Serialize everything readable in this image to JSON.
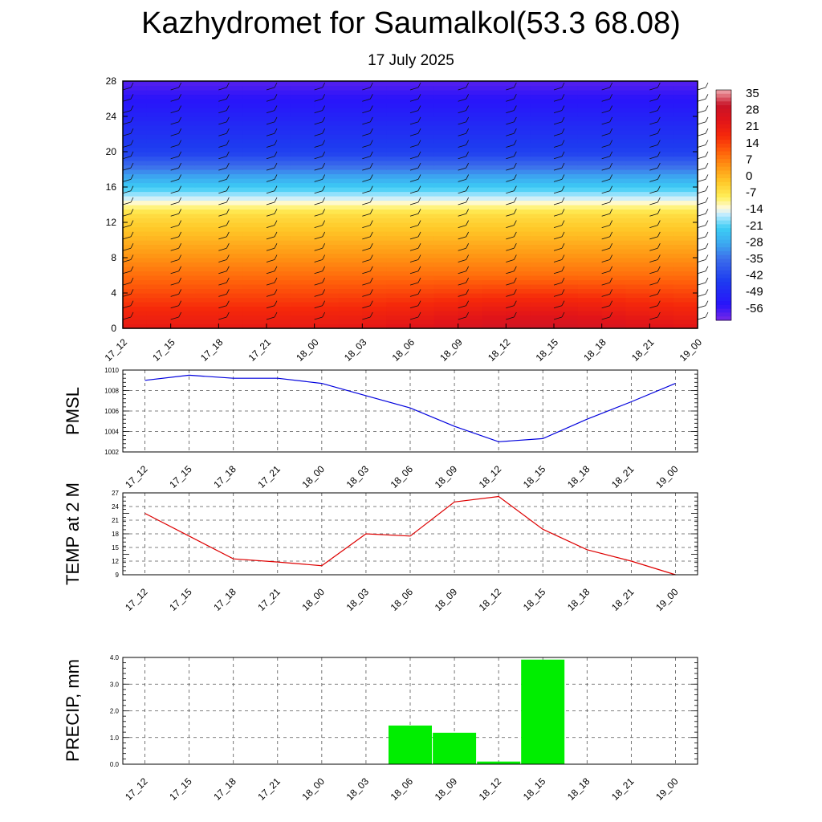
{
  "header": {
    "title": "Kazhydromet for Saumalkol(53.3 68.08)",
    "subtitle": "17 July 2025"
  },
  "chart_data": [
    {
      "type": "heatmap",
      "title": "",
      "xlabel": "",
      "ylabel": "",
      "x_labels": [
        "17_12",
        "17_15",
        "17_18",
        "17_21",
        "18_00",
        "18_03",
        "18_06",
        "18_09",
        "18_12",
        "18_15",
        "18_18",
        "18_21",
        "19_00"
      ],
      "y_ticks": [
        0,
        4,
        8,
        12,
        16,
        20,
        24,
        28
      ],
      "ylim": [
        0,
        28
      ],
      "colorbar_ticks": [
        35,
        28,
        21,
        14,
        7,
        0,
        -7,
        -14,
        -21,
        -28,
        -35,
        -42,
        -49,
        -56
      ],
      "colorbar_range": [
        -63,
        42
      ],
      "features": "temperature shading with wind barbs",
      "grid": false
    },
    {
      "type": "line",
      "title": "",
      "ylabel": "PMSL",
      "x": [
        "17_12",
        "17_15",
        "17_18",
        "17_21",
        "18_00",
        "18_03",
        "18_06",
        "18_09",
        "18_12",
        "18_15",
        "18_18",
        "18_21",
        "19_00"
      ],
      "series": [
        {
          "values": [
            1009.0,
            1009.5,
            1009.2,
            1009.2,
            1008.7,
            1007.5,
            1006.3,
            1004.5,
            1003.0,
            1003.3,
            1005.2,
            1006.9,
            1008.7
          ],
          "color": "#0000dd"
        }
      ],
      "y_ticks": [
        "1002",
        "1004",
        "1006",
        "1008",
        "1010"
      ],
      "ylim": [
        1002,
        1010
      ],
      "grid": true
    },
    {
      "type": "line",
      "title": "",
      "ylabel": "TEMP at 2 M",
      "x": [
        "17_12",
        "17_15",
        "17_18",
        "17_21",
        "18_00",
        "18_03",
        "18_06",
        "18_09",
        "18_12",
        "18_15",
        "18_18",
        "18_21",
        "19_00"
      ],
      "series": [
        {
          "values": [
            22.5,
            17.5,
            12.5,
            11.8,
            11.0,
            18.0,
            17.5,
            25.0,
            26.2,
            19.0,
            14.5,
            12.0,
            9.0
          ],
          "color": "#dd0000"
        }
      ],
      "y_ticks": [
        "9",
        "12",
        "15",
        "18",
        "21",
        "24",
        "27"
      ],
      "ylim": [
        9,
        27
      ],
      "grid": true
    },
    {
      "type": "bar",
      "title": "",
      "ylabel": "PRECIP, mm",
      "categories": [
        "17_12",
        "17_15",
        "17_18",
        "17_21",
        "18_00",
        "18_03",
        "18_06",
        "18_09",
        "18_12",
        "18_15",
        "18_18",
        "18_21",
        "19_00"
      ],
      "values": [
        0,
        0,
        0,
        0,
        0,
        0,
        1.45,
        1.18,
        0.1,
        3.92,
        0,
        0,
        0
      ],
      "color": "#00ee00",
      "y_ticks": [
        "0.0",
        "1.0",
        "2.0",
        "3.0",
        "4.0"
      ],
      "ylim": [
        0,
        4
      ],
      "grid": true
    }
  ]
}
